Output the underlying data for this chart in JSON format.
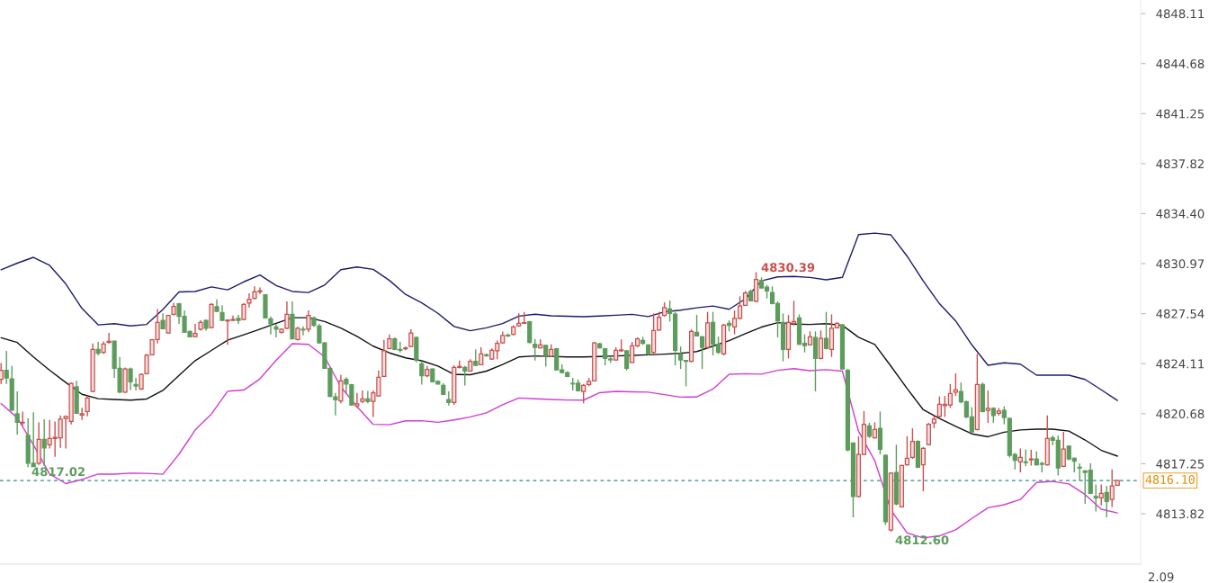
{
  "chart_data": [
    {
      "type": "candlestick",
      "categories": [
        null,
        null,
        null,
        null,
        null,
        null,
        null,
        null,
        null,
        null,
        null,
        null,
        null,
        null,
        null,
        null,
        null,
        null,
        null,
        null,
        null,
        null,
        null,
        null,
        null,
        null,
        null,
        null,
        null,
        null,
        null,
        null,
        null,
        null,
        null,
        null,
        null,
        null,
        null,
        null,
        null,
        null,
        null,
        null,
        null,
        null,
        null,
        null,
        null,
        null,
        null,
        null,
        null,
        null,
        null,
        null,
        null,
        null,
        null,
        null,
        null,
        null,
        null,
        null,
        null,
        null,
        null,
        null,
        null,
        null,
        null,
        null,
        null,
        null,
        null,
        null,
        null,
        null,
        null,
        null,
        null,
        null,
        null,
        null,
        null,
        null,
        null,
        null,
        null,
        null,
        null,
        null,
        null,
        null,
        null,
        null,
        null,
        null,
        null,
        null,
        null,
        null,
        null,
        null,
        null,
        null,
        null,
        null,
        null,
        null,
        null,
        null,
        null,
        null,
        null,
        null,
        null,
        null,
        null,
        null,
        null,
        null,
        null,
        null,
        null,
        null,
        null,
        null,
        null,
        null,
        null,
        null,
        null,
        null,
        null,
        null,
        null,
        null,
        null,
        null,
        null,
        null,
        null,
        null,
        null,
        null,
        null,
        null,
        null,
        null,
        null,
        null,
        null,
        null,
        null,
        null,
        null,
        null,
        null,
        null,
        null,
        null,
        null,
        null,
        null,
        null,
        null,
        null,
        null,
        null,
        null,
        null,
        null,
        null,
        null,
        null,
        null,
        null,
        null,
        null,
        null,
        null,
        null,
        null,
        null,
        null,
        null,
        null,
        null,
        null,
        null,
        null,
        null,
        null,
        null,
        null,
        null,
        null,
        null,
        null,
        null,
        null,
        null,
        null,
        null,
        null,
        null,
        null
      ],
      "ylim": [
        4810.37,
        4849.04
      ],
      "yticks": [
        4848.11,
        4844.68,
        4841.25,
        4837.82,
        {
          "value": 4834.4,
          "label": "4834.40"
        },
        4830.97,
        4827.54,
        4824.11,
        4820.68,
        4817.25,
        4813.82
      ],
      "tick_labels": "y",
      "ohlc": [
        [
          4823.03,
          4824.16,
          4822.72,
          4823.65
        ],
        [
          4823.65,
          4824.99,
          4822.72,
          4823.13
        ],
        [
          4823.07,
          4823.96,
          4820.87,
          4820.93
        ],
        [
          4820.67,
          4822.21,
          4819.23,
          4820.09
        ],
        [
          4820.05,
          4820.83,
          4819.85,
          4820.09
        ],
        [
          4819.19,
          4820.36,
          4817.02,
          4817.28
        ],
        [
          4817.28,
          4820.77,
          4817.03,
          4817.05
        ],
        [
          4817.28,
          4820.09,
          4817.17,
          4818.92
        ],
        [
          4818.92,
          4820.3,
          4817.1,
          4818.34
        ],
        [
          4818.55,
          4820.26,
          4818.3,
          4818.98
        ],
        [
          4818.98,
          4820.15,
          4817.73,
          4819.06
        ],
        [
          4819.02,
          4820.56,
          4818.34,
          4820.3
        ],
        [
          4820.36,
          4820.56,
          4818.3,
          4820.5
        ],
        [
          4820.15,
          4822.83,
          4819.95,
          4822.76
        ],
        [
          4822.52,
          4822.93,
          4820.67,
          4820.71
        ],
        [
          4820.59,
          4821.08,
          4820.26,
          4820.67
        ],
        [
          4820.83,
          4821.9,
          4820.5,
          4821.76
        ],
        [
          4822.21,
          4825.5,
          4822.15,
          4825.09
        ],
        [
          4825.09,
          4825.6,
          4824.68,
          4824.82
        ],
        [
          4824.88,
          4825.64,
          4824.78,
          4825.46
        ],
        [
          4825.56,
          4826.22,
          4825.5,
          4825.64
        ],
        [
          4825.66,
          4825.66,
          4823.13,
          4823.79
        ],
        [
          4823.79,
          4824.57,
          4822.11,
          4822.15
        ],
        [
          4822.15,
          4823.85,
          4822.11,
          4823.75
        ],
        [
          4823.75,
          4823.85,
          4822.31,
          4822.87
        ],
        [
          4822.68,
          4823.13,
          4822.27,
          4822.58
        ],
        [
          4822.37,
          4823.44,
          4822.31,
          4823.38
        ],
        [
          4823.42,
          4824.78,
          4823.38,
          4824.68
        ],
        [
          4824.72,
          4825.81,
          4824.68,
          4825.75
        ],
        [
          4825.77,
          4827.86,
          4825.5,
          4826.94
        ],
        [
          4827.08,
          4827.56,
          4826.47,
          4826.51
        ],
        [
          4826.22,
          4827.45,
          4826.16,
          4827.41
        ],
        [
          4827.49,
          4828.27,
          4827.41,
          4828.03
        ],
        [
          4828.21,
          4828.27,
          4826.84,
          4827.35
        ],
        [
          4827.35,
          4827.76,
          4826.22,
          4826.26
        ],
        [
          4826.32,
          4826.38,
          4825.91,
          4825.95
        ],
        [
          4825.97,
          4826.84,
          4825.91,
          4826.18
        ],
        [
          4826.47,
          4827.08,
          4826.38,
          4826.94
        ],
        [
          4827.08,
          4827.14,
          4826.38,
          4826.53
        ],
        [
          4826.59,
          4828.27,
          4826.53,
          4828.17
        ],
        [
          4828.01,
          4828.52,
          4827.66,
          4827.7
        ],
        [
          4827.62,
          4828.11,
          4827.04,
          4827.08
        ],
        [
          4827.04,
          4827.14,
          4825.4,
          4827.1
        ],
        [
          4827.08,
          4827.41,
          4827.04,
          4827.14
        ],
        [
          4827.21,
          4827.45,
          4826.84,
          4827.08
        ],
        [
          4827.14,
          4828.27,
          4827.08,
          4828.17
        ],
        [
          4828.27,
          4828.93,
          4827.97,
          4828.52
        ],
        [
          4828.58,
          4829.41,
          4828.52,
          4829.04
        ],
        [
          4829.04,
          4829.34,
          4828.89,
          4829.1
        ],
        [
          4828.83,
          4828.89,
          4827.21,
          4827.25
        ],
        [
          4827.18,
          4827.35,
          4826.12,
          4826.84
        ],
        [
          4826.63,
          4826.84,
          4825.91,
          4826.47
        ],
        [
          4826.26,
          4826.53,
          4826.18,
          4826.47
        ],
        [
          4826.53,
          4828.38,
          4826.47,
          4827.49
        ],
        [
          4827.49,
          4828.38,
          4825.81,
          4825.81
        ],
        [
          4825.77,
          4826.63,
          4825.7,
          4826.53
        ],
        [
          4826.47,
          4826.67,
          4826.05,
          4826.42
        ],
        [
          4826.47,
          4827.76,
          4826.26,
          4827.41
        ],
        [
          4827.25,
          4827.35,
          4826.63,
          4826.73
        ],
        [
          4826.69,
          4826.84,
          4825.5,
          4825.54
        ],
        [
          4825.54,
          4825.6,
          4823.75,
          4823.79
        ],
        [
          4823.79,
          4823.85,
          4821.82,
          4821.86
        ],
        [
          4821.84,
          4822.11,
          4820.56,
          4821.63
        ],
        [
          4821.55,
          4823.34,
          4821.39,
          4822.93
        ],
        [
          4823.03,
          4823.18,
          4822.11,
          4822.72
        ],
        [
          4822.66,
          4822.72,
          4821.24,
          4821.28
        ],
        [
          4821.22,
          4822.11,
          4821.08,
          4821.35
        ],
        [
          4821.53,
          4822.27,
          4821.39,
          4821.7
        ],
        [
          4821.7,
          4822.25,
          4821.39,
          4821.53
        ],
        [
          4821.53,
          4822.27,
          4820.46,
          4822.11
        ],
        [
          4821.9,
          4823.65,
          4821.86,
          4823.18
        ],
        [
          4823.24,
          4825.75,
          4823.18,
          4824.99
        ],
        [
          4825.15,
          4826.12,
          4825.09,
          4825.81
        ],
        [
          4825.81,
          4825.91,
          4825.03,
          4825.09
        ],
        [
          4825.09,
          4825.6,
          4824.88,
          4825.03
        ],
        [
          4825.13,
          4825.29,
          4825.03,
          4825.19
        ],
        [
          4825.29,
          4826.47,
          4825.23,
          4826.22
        ],
        [
          4825.91,
          4825.97,
          4824.2,
          4824.37
        ],
        [
          4824.1,
          4824.27,
          4822.68,
          4823.28
        ],
        [
          4823.28,
          4823.96,
          4823.18,
          4823.71
        ],
        [
          4823.75,
          4823.79,
          4822.83,
          4822.87
        ],
        [
          4822.89,
          4822.97,
          4822.68,
          4822.72
        ],
        [
          4822.62,
          4822.76,
          4821.96,
          4822.0
        ],
        [
          4821.65,
          4822.21,
          4821.24,
          4821.45
        ],
        [
          4821.45,
          4824.0,
          4821.28,
          4823.85
        ],
        [
          4823.85,
          4824.33,
          4823.79,
          4823.92
        ],
        [
          4823.85,
          4823.96,
          4822.62,
          4823.61
        ],
        [
          4823.61,
          4824.41,
          4823.55,
          4824.27
        ],
        [
          4824.27,
          4825.09,
          4823.96,
          4824.0
        ],
        [
          4824.04,
          4825.23,
          4824.0,
          4824.78
        ],
        [
          4824.72,
          4824.82,
          4824.57,
          4824.66
        ],
        [
          4824.43,
          4825.15,
          4824.37,
          4825.03
        ],
        [
          4824.99,
          4825.7,
          4824.41,
          4825.5
        ],
        [
          4825.54,
          4826.32,
          4825.5,
          4826.05
        ],
        [
          4826.07,
          4826.18,
          4825.95,
          4826.01
        ],
        [
          4826.12,
          4826.73,
          4826.05,
          4826.63
        ],
        [
          4826.71,
          4827.56,
          4826.63,
          4826.88
        ],
        [
          4826.88,
          4827.66,
          4826.84,
          4826.92
        ],
        [
          4826.98,
          4827.04,
          4825.5,
          4825.56
        ],
        [
          4825.44,
          4825.81,
          4824.33,
          4825.23
        ],
        [
          4825.19,
          4825.77,
          4825.15,
          4825.4
        ],
        [
          4825.36,
          4825.4,
          4823.9,
          4824.68
        ],
        [
          4824.62,
          4825.44,
          4824.57,
          4825.09
        ],
        [
          4825.13,
          4825.19,
          4823.65,
          4823.69
        ],
        [
          4823.69,
          4824.06,
          4823.44,
          4823.5
        ],
        [
          4823.5,
          4823.59,
          4823.18,
          4823.24
        ],
        [
          4822.76,
          4823.13,
          4822.27,
          4822.72
        ],
        [
          4822.78,
          4823.03,
          4822.21,
          4822.25
        ],
        [
          4822.21,
          4822.72,
          4821.39,
          4822.62
        ],
        [
          4822.68,
          4823.13,
          4822.56,
          4822.89
        ],
        [
          4822.93,
          4825.6,
          4822.89,
          4825.54
        ],
        [
          4825.48,
          4825.54,
          4825.15,
          4825.19
        ],
        [
          4825.13,
          4825.19,
          4824.0,
          4824.47
        ],
        [
          4824.43,
          4824.57,
          4824.16,
          4824.37
        ],
        [
          4824.37,
          4825.23,
          4824.33,
          4825.03
        ],
        [
          4824.99,
          4825.77,
          4824.94,
          4825.05
        ],
        [
          4824.99,
          4825.03,
          4823.65,
          4823.79
        ],
        [
          4824.2,
          4825.6,
          4824.16,
          4825.33
        ],
        [
          4825.33,
          4825.91,
          4825.23,
          4825.81
        ],
        [
          4825.7,
          4825.95,
          4825.4,
          4825.5
        ],
        [
          4825.4,
          4825.44,
          4824.68,
          4824.78
        ],
        [
          4824.88,
          4827.56,
          4824.78,
          4826.38
        ],
        [
          4826.42,
          4827.66,
          4826.38,
          4827.29
        ],
        [
          4827.41,
          4828.32,
          4827.35,
          4827.95
        ],
        [
          4827.86,
          4828.44,
          4827.0,
          4827.56
        ],
        [
          4827.51,
          4827.66,
          4824.0,
          4825.03
        ],
        [
          4824.74,
          4825.29,
          4823.75,
          4824.37
        ],
        [
          4824.33,
          4824.37,
          4822.56,
          4824.27
        ],
        [
          4824.27,
          4826.47,
          4824.2,
          4826.32
        ],
        [
          4826.26,
          4827.45,
          4825.97,
          4826.01
        ],
        [
          4825.95,
          4826.01,
          4823.75,
          4825.23
        ],
        [
          4825.23,
          4827.66,
          4825.15,
          4826.9
        ],
        [
          4826.94,
          4827.66,
          4824.68,
          4825.44
        ],
        [
          4825.44,
          4825.97,
          4824.78,
          4824.88
        ],
        [
          4824.78,
          4826.84,
          4824.68,
          4826.75
        ],
        [
          4826.88,
          4827.08,
          4826.32,
          4826.73
        ],
        [
          4826.63,
          4827.76,
          4826.12,
          4827.21
        ],
        [
          4827.21,
          4828.73,
          4827.14,
          4828.07
        ],
        [
          4828.11,
          4829.1,
          4828.07,
          4828.95
        ],
        [
          4829.06,
          4829.2,
          4828.38,
          4828.42
        ],
        [
          4828.38,
          4830.39,
          4828.32,
          4829.88
        ],
        [
          4829.82,
          4830.02,
          4829.26,
          4829.3
        ],
        [
          4829.36,
          4829.51,
          4828.58,
          4829.1
        ],
        [
          4828.99,
          4829.41,
          4828.17,
          4828.23
        ],
        [
          4828.23,
          4828.38,
          4825.91,
          4827.04
        ],
        [
          4826.94,
          4827.55,
          4824.27,
          4825.09
        ],
        [
          4825.09,
          4827.45,
          4824.47,
          4826.94
        ],
        [
          4826.88,
          4828.42,
          4826.73,
          4827.0
        ],
        [
          4827.25,
          4827.49,
          4825.4,
          4825.44
        ],
        [
          4825.5,
          4826.12,
          4824.88,
          4825.35
        ],
        [
          4825.4,
          4826.32,
          4825.35,
          4825.95
        ],
        [
          4825.91,
          4826.32,
          4822.21,
          4824.47
        ],
        [
          4824.47,
          4826.38,
          4824.41,
          4825.85
        ],
        [
          4825.85,
          4827.66,
          4825.09,
          4825.15
        ],
        [
          4825.09,
          4827.49,
          4824.57,
          4826.53
        ],
        [
          4826.57,
          4826.94,
          4826.53,
          4826.88
        ],
        [
          4826.77,
          4826.84,
          4823.71,
          4823.75
        ],
        [
          4823.65,
          4823.75,
          4818.1,
          4818.2
        ],
        [
          4818.67,
          4818.71,
          4813.57,
          4815.01
        ],
        [
          4815.01,
          4819.13,
          4814.95,
          4817.89
        ],
        [
          4817.89,
          4820.87,
          4817.83,
          4819.95
        ],
        [
          4819.84,
          4820.05,
          4819.02,
          4819.13
        ],
        [
          4819.02,
          4820.09,
          4818.98,
          4819.6
        ],
        [
          4819.68,
          4820.83,
          4817.89,
          4818.24
        ],
        [
          4817.83,
          4817.89,
          4813.06,
          4813.27
        ],
        [
          4812.7,
          4816.66,
          4812.6,
          4816.6
        ],
        [
          4816.66,
          4818.55,
          4814.4,
          4814.5
        ],
        [
          4814.29,
          4817.17,
          4814.25,
          4817.13
        ],
        [
          4817.17,
          4819.13,
          4817.13,
          4817.62
        ],
        [
          4817.69,
          4819.68,
          4817.58,
          4818.78
        ],
        [
          4818.78,
          4818.86,
          4816.97,
          4817.01
        ],
        [
          4817.17,
          4818.4,
          4815.36,
          4818.3
        ],
        [
          4818.57,
          4820.05,
          4818.51,
          4819.95
        ],
        [
          4820.05,
          4820.56,
          4819.68,
          4820.3
        ],
        [
          4820.5,
          4821.86,
          4820.42,
          4821.33
        ],
        [
          4821.24,
          4821.9,
          4820.46,
          4821.33
        ],
        [
          4821.28,
          4822.72,
          4821.08,
          4822.07
        ],
        [
          4822.15,
          4823.44,
          4821.9,
          4822.31
        ],
        [
          4822.21,
          4822.82,
          4821.39,
          4821.49
        ],
        [
          4821.49,
          4821.59,
          4820.36,
          4820.46
        ],
        [
          4820.46,
          4821.12,
          4819.39,
          4819.43
        ],
        [
          4819.6,
          4824.78,
          4819.53,
          4822.68
        ],
        [
          4822.68,
          4822.82,
          4820.77,
          4820.83
        ],
        [
          4820.91,
          4822.27,
          4820.05,
          4821.04
        ],
        [
          4821.04,
          4821.12,
          4820.05,
          4820.56
        ],
        [
          4820.71,
          4821.08,
          4820.56,
          4820.87
        ],
        [
          4820.91,
          4821.18,
          4819.95,
          4820.42
        ],
        [
          4820.36,
          4820.42,
          4817.68,
          4817.83
        ],
        [
          4817.89,
          4817.99,
          4816.86,
          4817.48
        ],
        [
          4817.38,
          4818.3,
          4816.66,
          4817.68
        ],
        [
          4817.38,
          4818.24,
          4817.07,
          4817.33
        ],
        [
          4817.52,
          4818.2,
          4817.13,
          4817.58
        ],
        [
          4817.58,
          4818.1,
          4817.13,
          4817.17
        ],
        [
          4817.27,
          4817.38,
          4816.66,
          4817.21
        ],
        [
          4817.17,
          4820.56,
          4817.13,
          4818.98
        ],
        [
          4819.02,
          4819.19,
          4818.51,
          4818.86
        ],
        [
          4818.86,
          4819.19,
          4816.45,
          4816.96
        ],
        [
          4817.07,
          4819.43,
          4817.01,
          4818.26
        ],
        [
          4818.45,
          4818.51,
          4817.48,
          4817.58
        ],
        [
          4817.62,
          4817.68,
          4816.66,
          4817.42
        ],
        [
          4817.01,
          4817.27,
          4816.04,
          4816.96
        ],
        [
          4816.76,
          4816.8,
          4814.5,
          4816.66
        ],
        [
          4816.8,
          4817.27,
          4815.16,
          4815.22
        ],
        [
          4815.01,
          4815.83,
          4813.98,
          4814.91
        ],
        [
          4814.91,
          4815.83,
          4814.39,
          4815.22
        ],
        [
          4815.28,
          4815.73,
          4813.57,
          4814.66
        ],
        [
          4814.81,
          4816.86,
          4814.29,
          4815.73
        ],
        [
          4815.77,
          4816.14,
          4815.73,
          4816.1
        ]
      ],
      "colors": [
        "#c9504c",
        "#5d9c5d",
        "#5d9c5d",
        "#5d9c5d",
        "#c9504c",
        "#5d9c5d",
        "#5d9c5d",
        "#c9504c",
        "#5d9c5d",
        "#c9504c",
        "#c9504c",
        "#c9504c",
        "#c9504c",
        "#c9504c",
        "#5d9c5d",
        "#c9504c",
        "#c9504c",
        "#c9504c",
        "#5d9c5d",
        "#c9504c",
        "#c9504c",
        "#5d9c5d",
        "#5d9c5d",
        "#c9504c",
        "#5d9c5d",
        "#5d9c5d",
        "#c9504c",
        "#c9504c",
        "#c9504c",
        "#c9504c",
        "#5d9c5d",
        "#c9504c",
        "#c9504c",
        "#5d9c5d",
        "#5d9c5d",
        "#5d9c5d",
        "#c9504c",
        "#c9504c",
        "#5d9c5d",
        "#c9504c",
        "#5d9c5d",
        "#5d9c5d",
        "#c9504c",
        "#c9504c",
        "#5d9c5d",
        "#c9504c",
        "#c9504c",
        "#c9504c",
        "#c9504c",
        "#5d9c5d",
        "#5d9c5d",
        "#5d9c5d",
        "#c9504c",
        "#c9504c",
        "#5d9c5d",
        "#c9504c",
        "#5d9c5d",
        "#c9504c",
        "#5d9c5d",
        "#5d9c5d",
        "#5d9c5d",
        "#5d9c5d",
        "#5d9c5d",
        "#c9504c",
        "#5d9c5d",
        "#5d9c5d",
        "#c9504c",
        "#c9504c",
        "#5d9c5d",
        "#c9504c",
        "#c9504c",
        "#c9504c",
        "#c9504c",
        "#5d9c5d",
        "#5d9c5d",
        "#c9504c",
        "#c9504c",
        "#5d9c5d",
        "#5d9c5d",
        "#c9504c",
        "#5d9c5d",
        "#5d9c5d",
        "#5d9c5d",
        "#5d9c5d",
        "#c9504c",
        "#c9504c",
        "#5d9c5d",
        "#c9504c",
        "#5d9c5d",
        "#c9504c",
        "#5d9c5d",
        "#c9504c",
        "#c9504c",
        "#c9504c",
        "#5d9c5d",
        "#c9504c",
        "#c9504c",
        "#c9504c",
        "#5d9c5d",
        "#5d9c5d",
        "#c9504c",
        "#5d9c5d",
        "#c9504c",
        "#5d9c5d",
        "#5d9c5d",
        "#5d9c5d",
        "#5d9c5d",
        "#5d9c5d",
        "#c9504c",
        "#c9504c",
        "#c9504c",
        "#5d9c5d",
        "#5d9c5d",
        "#5d9c5d",
        "#c9504c",
        "#c9504c",
        "#5d9c5d",
        "#c9504c",
        "#c9504c",
        "#5d9c5d",
        "#5d9c5d",
        "#c9504c",
        "#c9504c",
        "#c9504c",
        "#5d9c5d",
        "#5d9c5d",
        "#5d9c5d",
        "#5d9c5d",
        "#c9504c",
        "#5d9c5d",
        "#5d9c5d",
        "#c9504c",
        "#5d9c5d",
        "#5d9c5d",
        "#c9504c",
        "#5d9c5d",
        "#c9504c",
        "#c9504c",
        "#c9504c",
        "#5d9c5d",
        "#c9504c",
        "#5d9c5d",
        "#5d9c5d",
        "#5d9c5d",
        "#5d9c5d",
        "#5d9c5d",
        "#c9504c",
        "#c9504c",
        "#5d9c5d",
        "#5d9c5d",
        "#c9504c",
        "#5d9c5d",
        "#c9504c",
        "#5d9c5d",
        "#c9504c",
        "#c9504c",
        "#5d9c5d",
        "#5d9c5d",
        "#5d9c5d",
        "#c9504c",
        "#c9504c",
        "#5d9c5d",
        "#c9504c",
        "#5d9c5d",
        "#5d9c5d",
        "#c9504c",
        "#5d9c5d",
        "#c9504c",
        "#c9504c",
        "#c9504c",
        "#5d9c5d",
        "#c9504c",
        "#c9504c",
        "#c9504c",
        "#c9504c",
        "#c9504c",
        "#c9504c",
        "#c9504c",
        "#5d9c5d",
        "#5d9c5d",
        "#5d9c5d",
        "#c9504c",
        "#5d9c5d",
        "#c9504c",
        "#5d9c5d",
        "#c9504c",
        "#5d9c5d",
        "#5d9c5d",
        "#5d9c5d",
        "#c9504c",
        "#5d9c5d",
        "#c9504c",
        "#5d9c5d",
        "#5d9c5d",
        "#c9504c",
        "#5d9c5d",
        "#5d9c5d",
        "#c9504c",
        "#5d9c5d",
        "#5d9c5d",
        "#5d9c5d",
        "#5d9c5d",
        "#5d9c5d",
        "#5d9c5d",
        "#c9504c",
        "#5d9c5d",
        "#c9504c",
        "#c9504c"
      ],
      "ref_lines": [
        {
          "axis": "y",
          "value": 4816.1,
          "label": "4816.10",
          "color": "#2e8b8b",
          "line_style": "dashed"
        }
      ],
      "annotations": [
        "4830.39",
        "4817.02",
        "4812.60",
        "2.09"
      ]
    },
    {
      "type": "line",
      "categories": [
        null,
        null,
        null,
        null,
        null,
        null,
        null,
        null,
        null,
        null,
        null,
        null,
        null,
        null,
        null,
        null,
        null,
        null,
        null,
        null,
        null,
        null,
        null,
        null,
        null,
        null,
        null,
        null,
        null,
        null,
        null,
        null,
        null,
        null,
        null,
        null,
        null,
        null,
        null,
        null,
        null,
        null,
        null,
        null,
        null,
        null,
        null,
        null,
        null,
        null,
        null,
        null,
        null,
        null,
        null,
        null,
        null,
        null,
        null,
        null,
        null,
        null,
        null,
        null,
        null,
        null,
        null,
        null,
        null,
        null
      ],
      "ylim": [
        4810.37,
        4849.04
      ],
      "tick_labels": false,
      "series": [
        {
          "color": "#1c1c6b",
          "values": [
            4830.55,
            4831.0,
            4831.4,
            4830.85,
            4829.58,
            4827.9,
            4826.77,
            4826.85,
            4826.7,
            4826.8,
            4827.82,
            4829.03,
            4829.06,
            4829.37,
            4829.17,
            4829.72,
            4830.19,
            4829.47,
            4829.06,
            4828.99,
            4829.5,
            4830.55,
            4830.74,
            4830.58,
            4829.82,
            4828.86,
            4828.28,
            4827.56,
            4826.66,
            4826.37,
            4826.57,
            4826.86,
            4827.37,
            4827.5,
            4827.39,
            4827.36,
            4827.33,
            4827.38,
            4827.43,
            4827.49,
            4827.34,
            4827.66,
            4827.78,
            4827.94,
            4828.06,
            4827.84,
            4828.55,
            4829.79,
            4830.06,
            4830.09,
            4830.02,
            4829.86,
            4830.03,
            4832.96,
            4833.06,
            4832.94,
            4831.48,
            4829.78,
            4828.22,
            4827.04,
            4825.4,
            4824.0,
            4824.17,
            4824.08,
            4823.32,
            4823.32,
            4823.32,
            4823.03,
            4822.32,
            4821.59
          ]
        },
        {
          "color": "#111111",
          "values": [
            4825.89,
            4825.56,
            4824.57,
            4823.66,
            4822.82,
            4822.01,
            4821.71,
            4821.66,
            4821.61,
            4821.69,
            4822.28,
            4823.31,
            4824.32,
            4825.02,
            4825.72,
            4826.09,
            4826.48,
            4826.88,
            4827.26,
            4827.26,
            4827.0,
            4826.55,
            4825.98,
            4825.31,
            4824.85,
            4824.51,
            4824.31,
            4823.95,
            4823.37,
            4823.35,
            4823.6,
            4824.05,
            4824.57,
            4824.64,
            4824.61,
            4824.57,
            4824.57,
            4824.6,
            4824.64,
            4824.68,
            4824.72,
            4824.76,
            4824.82,
            4824.94,
            4825.31,
            4825.69,
            4826.16,
            4826.62,
            4826.92,
            4826.82,
            4826.8,
            4826.85,
            4826.74,
            4825.92,
            4825.43,
            4823.94,
            4822.4,
            4820.95,
            4820.35,
            4819.81,
            4819.3,
            4819.1,
            4819.41,
            4819.57,
            4819.62,
            4819.62,
            4819.49,
            4818.88,
            4818.17,
            4817.77
          ]
        },
        {
          "color": "#d23cd2",
          "values": [
            4821.38,
            4820.4,
            4818.55,
            4816.54,
            4815.89,
            4816.17,
            4816.54,
            4816.54,
            4816.61,
            4816.59,
            4816.53,
            4817.91,
            4819.57,
            4820.66,
            4822.22,
            4822.3,
            4823.07,
            4824.34,
            4825.48,
            4825.43,
            4824.57,
            4822.52,
            4821.16,
            4819.95,
            4819.92,
            4820.19,
            4820.2,
            4820.09,
            4820.25,
            4820.46,
            4820.74,
            4821.29,
            4821.76,
            4821.7,
            4821.66,
            4821.62,
            4821.61,
            4822.12,
            4822.21,
            4822.18,
            4822.16,
            4821.99,
            4821.82,
            4821.83,
            4822.37,
            4823.38,
            4823.42,
            4823.39,
            4823.65,
            4823.77,
            4823.63,
            4823.7,
            4823.6,
            4819.47,
            4817.46,
            4814.07,
            4812.51,
            4812.17,
            4812.31,
            4812.72,
            4813.5,
            4814.23,
            4814.44,
            4814.8,
            4815.97,
            4816.04,
            4815.87,
            4815.14,
            4814.13,
            4813.88
          ]
        }
      ]
    }
  ]
}
